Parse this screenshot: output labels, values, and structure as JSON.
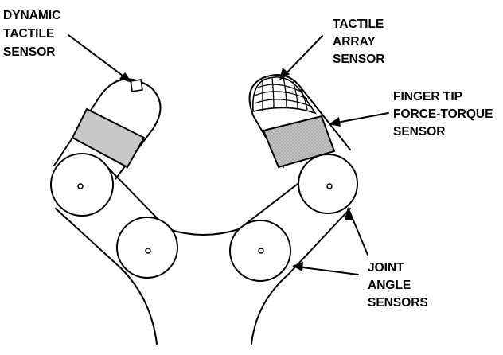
{
  "labels": {
    "dynamic_tactile": [
      "DYNAMIC",
      "TACTILE",
      "SENSOR"
    ],
    "tactile_array": [
      "TACTILE",
      "ARRAY",
      "SENSOR"
    ],
    "force_torque": [
      "FINGER TIP",
      "FORCE-TORQUE",
      "SENSOR"
    ],
    "joint_angle": [
      "JOINT",
      "ANGLE",
      "SENSORS"
    ]
  },
  "colors": {
    "line": "#000000",
    "sensor_fill": "#c8c8c8",
    "background": "#ffffff"
  }
}
